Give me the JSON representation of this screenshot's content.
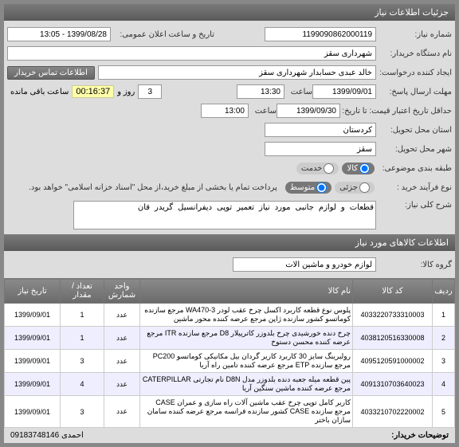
{
  "headers": {
    "info_section": "جزئیات اطلاعات نیاز",
    "items_section": "اطلاعات کالاهای مورد نیاز"
  },
  "form": {
    "reqno_label": "شماره نیاز:",
    "reqno": "1199090862000119",
    "pubdate_label": "تاریخ و ساعت اعلان عمومی:",
    "pubdate": "1399/08/28 - 13:05",
    "buyer_label": "نام دستگاه خریدار:",
    "buyer": "شهرداری سقز",
    "creator_label": "ایجاد کننده درخواست:",
    "creator": "خالد عبدی حسابدار شهرداری سقز",
    "contact_btn": "اطلاعات تماس خریدار",
    "reply_deadline_label": "مهلت ارسال پاسخ:",
    "reply_date": "1399/09/01",
    "reply_time_label": "ساعت",
    "reply_time": "13:30",
    "remain_days_label": "روز و",
    "remain_days": "3",
    "remain_time": "00:16:37",
    "remain_suffix": "ساعت باقی مانده",
    "valid_label": "حداقل تاریخ اعتبار قیمت: تا تاریخ:",
    "valid_date": "1399/09/30",
    "valid_time_label": "ساعت",
    "valid_time": "13:00",
    "province_label": "استان محل تحویل:",
    "province": "کردستان",
    "city_label": "شهر محل تحویل:",
    "city": "سقز",
    "cat_label": "طبقه بندی موضوعی:",
    "cat_goods": "کالا",
    "cat_service": "خدمت",
    "process_label": "نوع فرآیند خرید :",
    "process_low": "جزئی",
    "process_mid": "متوسط",
    "process_note": "پرداخت تمام یا بخشی از مبلغ خرید،از محل \"اسناد خزانه اسلامی\" خواهد بود.",
    "desc_label": "شرح کلی نیاز:",
    "desc": "قطعات و لوازم جانبی مورد نیاز تعمیر توپی دیفرانسیل گریدر قان",
    "group_label": "گروه کالا:",
    "group": "لوازم خودرو و ماشین آلات"
  },
  "table": {
    "cols": {
      "row": "ردیف",
      "code": "کد کالا",
      "name": "نام کالا",
      "unit": "واحد شمارش",
      "qty": "تعداد / مقدار",
      "date": "تاریخ نیاز"
    },
    "rows": [
      {
        "n": "1",
        "code": "4033220733310003",
        "name": "پلوس نوع قطعه کاربرد اکسل چرخ عقب لودر WA470-3 مرجع سازنده کوماتسو کشور سازنده ژاپن مرجع عرضه کننده محور ماشین",
        "unit": "عدد",
        "qty": "1",
        "date": "1399/09/01"
      },
      {
        "n": "2",
        "code": "4038120516330008",
        "name": "چرخ دنده خورشیدی چرخ بلدوزر کاترپیلار D8 مرجع سازنده ITR مرجع عرضه کننده محسن دستوخ",
        "unit": "عدد",
        "qty": "1",
        "date": "1399/09/01"
      },
      {
        "n": "3",
        "code": "4095120591000002",
        "name": "رولبرینگ سایز 30 کاربرد کاریر گردان بیل مکانیکی کوماتسو PC200 مرجع سازنده ETP مرجع عرضه کننده تامین راه آریا",
        "unit": "عدد",
        "qty": "3",
        "date": "1399/09/01"
      },
      {
        "n": "4",
        "code": "4091310703640023",
        "name": "پین قطعه میله جعبه دنده بلدوزر مدل D8N نام تجارتی CATERPILLAR مرجع عرضه کننده ماشین سنگین آریا",
        "unit": "عدد",
        "qty": "4",
        "date": "1399/09/01"
      },
      {
        "n": "5",
        "code": "4033210702220002",
        "name": "کاریر کامل توپی چرخ عقب ماشین آلات راه سازی و عمران CASE مرجع سازنده CASE کشور سازنده فرانسه مرجع عرضه کننده سامان سازان باختر",
        "unit": "عدد",
        "qty": "3",
        "date": "1399/09/01"
      }
    ]
  },
  "footer": {
    "buyer_notes_label": "توضیحات خریدار:",
    "buyer_notes": "احمدی 09183748146"
  }
}
